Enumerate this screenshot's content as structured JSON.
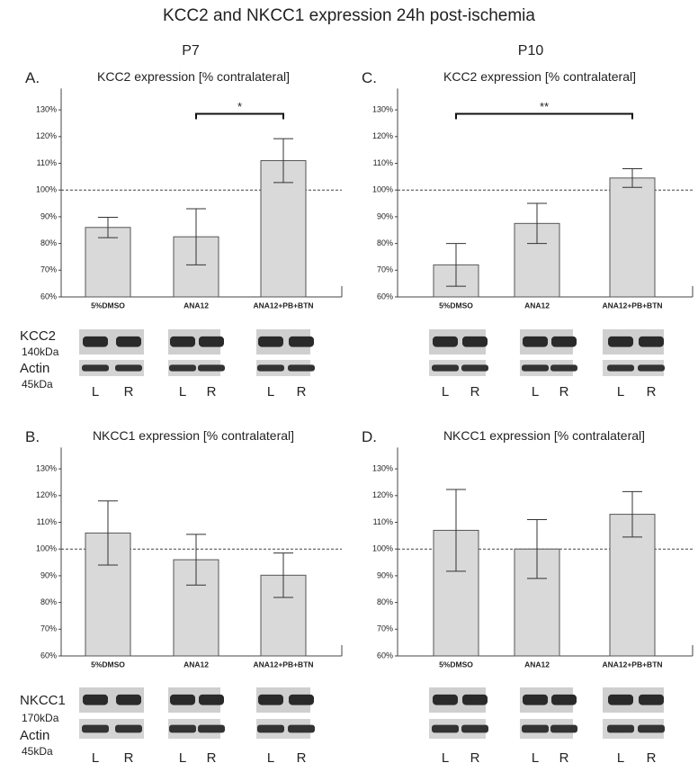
{
  "title": "KCC2 and NKCC1 expression 24h post-ischemia",
  "columns": [
    "P7",
    "P10"
  ],
  "blots": [
    {
      "protein": "KCC2",
      "size": "140kDa",
      "loading": "Actin",
      "loading_size": "45kDa"
    },
    {
      "protein": "NKCC1",
      "size": "170kDa",
      "loading": "Actin",
      "loading_size": "45kDa"
    }
  ],
  "lanes": [
    "L",
    "R"
  ],
  "chart_data": [
    {
      "type": "bar",
      "panel": "A.",
      "title": "KCC2 expression [% contralateral]",
      "categories": [
        "5%DMSO",
        "ANA12",
        "ANA12+PB+BTN"
      ],
      "values": [
        86,
        82.5,
        111
      ],
      "errors": [
        3.8,
        10.5,
        8.2
      ],
      "color": "#d9d9d9",
      "ylim": [
        60,
        138
      ],
      "yticks": [
        {
          "value": 60,
          "label": "60%"
        },
        {
          "value": 70,
          "label": "70%"
        },
        {
          "value": 80,
          "label": "80%"
        },
        {
          "value": 90,
          "label": "90%"
        },
        {
          "value": 100,
          "label": "100%"
        },
        {
          "value": 110,
          "label": "110%"
        },
        {
          "value": 120,
          "label": "120%"
        },
        {
          "value": 130,
          "label": "130%"
        }
      ],
      "reference_line": 100,
      "annotation": {
        "text": "*",
        "x": [
          "ANA12",
          "ANA12+PB+BTN"
        ],
        "y": 128.5
      }
    },
    {
      "type": "bar",
      "panel": "B.",
      "title": "NKCC1 expression [% contralateral]",
      "categories": [
        "5%DMSO",
        "ANA12",
        "ANA12+PB+BTN"
      ],
      "values": [
        106,
        96,
        90.2
      ],
      "errors": [
        12,
        9.5,
        8.3
      ],
      "color": "#d9d9d9",
      "ylim": [
        60,
        138
      ],
      "yticks": [
        {
          "value": 60,
          "label": "60%"
        },
        {
          "value": 70,
          "label": "70%"
        },
        {
          "value": 80,
          "label": "80%"
        },
        {
          "value": 90,
          "label": "90%"
        },
        {
          "value": 100,
          "label": "100%"
        },
        {
          "value": 110,
          "label": "110%"
        },
        {
          "value": 120,
          "label": "120%"
        },
        {
          "value": 130,
          "label": "130%"
        }
      ],
      "reference_line": 100
    },
    {
      "type": "bar",
      "panel": "C.",
      "title": "KCC2 expression [% contralateral]",
      "categories": [
        "5%DMSO",
        "ANA12",
        "ANA12+PB+BTN"
      ],
      "values": [
        72,
        87.5,
        104.5
      ],
      "errors": [
        8,
        7.5,
        3.5
      ],
      "color": "#d9d9d9",
      "ylim": [
        60,
        138
      ],
      "yticks": [
        {
          "value": 60,
          "label": "60%"
        },
        {
          "value": 70,
          "label": "70%"
        },
        {
          "value": 80,
          "label": "80%"
        },
        {
          "value": 90,
          "label": "90%"
        },
        {
          "value": 100,
          "label": "100%"
        },
        {
          "value": 110,
          "label": "110%"
        },
        {
          "value": 120,
          "label": "120%"
        },
        {
          "value": 130,
          "label": "130%"
        }
      ],
      "reference_line": 100,
      "annotation": {
        "text": "**",
        "x": [
          "5%DMSO",
          "ANA12+PB+BTN"
        ],
        "y": 128.5
      }
    },
    {
      "type": "bar",
      "panel": "D.",
      "title": "NKCC1 expression [% contralateral]",
      "categories": [
        "5%DMSO",
        "ANA12",
        "ANA12+PB+BTN"
      ],
      "values": [
        107,
        100,
        113
      ],
      "errors": [
        15.3,
        11,
        8.5
      ],
      "color": "#d9d9d9",
      "ylim": [
        60,
        138
      ],
      "yticks": [
        {
          "value": 60,
          "label": "60%"
        },
        {
          "value": 70,
          "label": "70%"
        },
        {
          "value": 80,
          "label": "80%"
        },
        {
          "value": 90,
          "label": "90%"
        },
        {
          "value": 100,
          "label": "100%"
        },
        {
          "value": 110,
          "label": "110%"
        },
        {
          "value": 120,
          "label": "120%"
        },
        {
          "value": 130,
          "label": "130%"
        }
      ],
      "reference_line": 100
    }
  ]
}
